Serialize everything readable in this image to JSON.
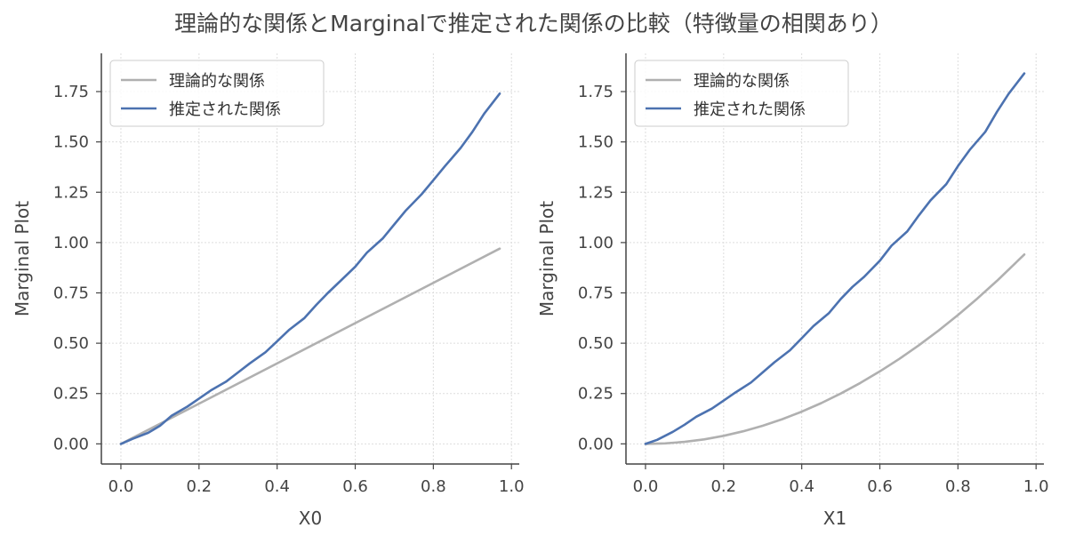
{
  "figure": {
    "title": "理論的な関係とMarginalで推定された関係の比較（特徴量の相関あり）"
  },
  "colors": {
    "theoretical": "#b0b0b0",
    "estimated": "#4c72b0",
    "axis": "#444444",
    "grid": "#dddddd",
    "legend_border": "#cccccc"
  },
  "chart_data": [
    {
      "type": "line",
      "xlabel": "X0",
      "ylabel": "Marginal Plot",
      "xlim": [
        -0.05,
        1.02
      ],
      "ylim": [
        -0.1,
        1.94
      ],
      "xticks": [
        "0.0",
        "0.2",
        "0.4",
        "0.6",
        "0.8",
        "1.0"
      ],
      "yticks": [
        "0.00",
        "0.25",
        "0.50",
        "0.75",
        "1.00",
        "1.25",
        "1.50",
        "1.75"
      ],
      "grid": true,
      "legend_position": "upper-left",
      "series": [
        {
          "name": "理論的な関係",
          "color": "#b0b0b0",
          "x": [
            0.0,
            0.97
          ],
          "y": [
            0.0,
            0.97
          ]
        },
        {
          "name": "推定された関係",
          "color": "#4c72b0",
          "x": [
            0.0,
            0.03,
            0.07,
            0.1,
            0.13,
            0.17,
            0.2,
            0.23,
            0.27,
            0.3,
            0.33,
            0.37,
            0.4,
            0.43,
            0.47,
            0.5,
            0.53,
            0.56,
            0.6,
            0.63,
            0.67,
            0.7,
            0.73,
            0.77,
            0.8,
            0.83,
            0.87,
            0.9,
            0.93,
            0.97
          ],
          "y": [
            0.0,
            0.025,
            0.055,
            0.09,
            0.14,
            0.185,
            0.225,
            0.265,
            0.31,
            0.355,
            0.4,
            0.455,
            0.51,
            0.565,
            0.625,
            0.69,
            0.75,
            0.805,
            0.88,
            0.95,
            1.02,
            1.09,
            1.16,
            1.24,
            1.31,
            1.38,
            1.47,
            1.55,
            1.64,
            1.74
          ]
        }
      ]
    },
    {
      "type": "line",
      "xlabel": "X1",
      "ylabel": "Marginal Plot",
      "xlim": [
        -0.05,
        1.02
      ],
      "ylim": [
        -0.1,
        1.94
      ],
      "xticks": [
        "0.0",
        "0.2",
        "0.4",
        "0.6",
        "0.8",
        "1.0"
      ],
      "yticks": [
        "0.00",
        "0.25",
        "0.50",
        "0.75",
        "1.00",
        "1.25",
        "1.50",
        "1.75"
      ],
      "grid": true,
      "legend_position": "upper-left",
      "series": [
        {
          "name": "理論的な関係",
          "color": "#b0b0b0",
          "x": [
            0.0,
            0.05,
            0.1,
            0.15,
            0.2,
            0.25,
            0.3,
            0.35,
            0.4,
            0.45,
            0.5,
            0.55,
            0.6,
            0.65,
            0.7,
            0.75,
            0.8,
            0.85,
            0.9,
            0.97
          ],
          "y": [
            0.0,
            0.0025,
            0.01,
            0.0225,
            0.04,
            0.0625,
            0.09,
            0.1225,
            0.16,
            0.2025,
            0.25,
            0.3025,
            0.36,
            0.4225,
            0.49,
            0.5625,
            0.64,
            0.7225,
            0.81,
            0.9409
          ]
        },
        {
          "name": "推定された関係",
          "color": "#4c72b0",
          "x": [
            0.0,
            0.03,
            0.07,
            0.1,
            0.13,
            0.17,
            0.2,
            0.23,
            0.27,
            0.3,
            0.33,
            0.37,
            0.4,
            0.43,
            0.47,
            0.5,
            0.53,
            0.56,
            0.6,
            0.63,
            0.67,
            0.7,
            0.73,
            0.77,
            0.8,
            0.83,
            0.87,
            0.9,
            0.93,
            0.97
          ],
          "y": [
            0.0,
            0.02,
            0.06,
            0.095,
            0.135,
            0.175,
            0.215,
            0.255,
            0.305,
            0.355,
            0.405,
            0.465,
            0.525,
            0.585,
            0.65,
            0.72,
            0.78,
            0.83,
            0.91,
            0.985,
            1.055,
            1.135,
            1.21,
            1.29,
            1.38,
            1.46,
            1.55,
            1.65,
            1.74,
            1.84
          ]
        }
      ]
    }
  ]
}
